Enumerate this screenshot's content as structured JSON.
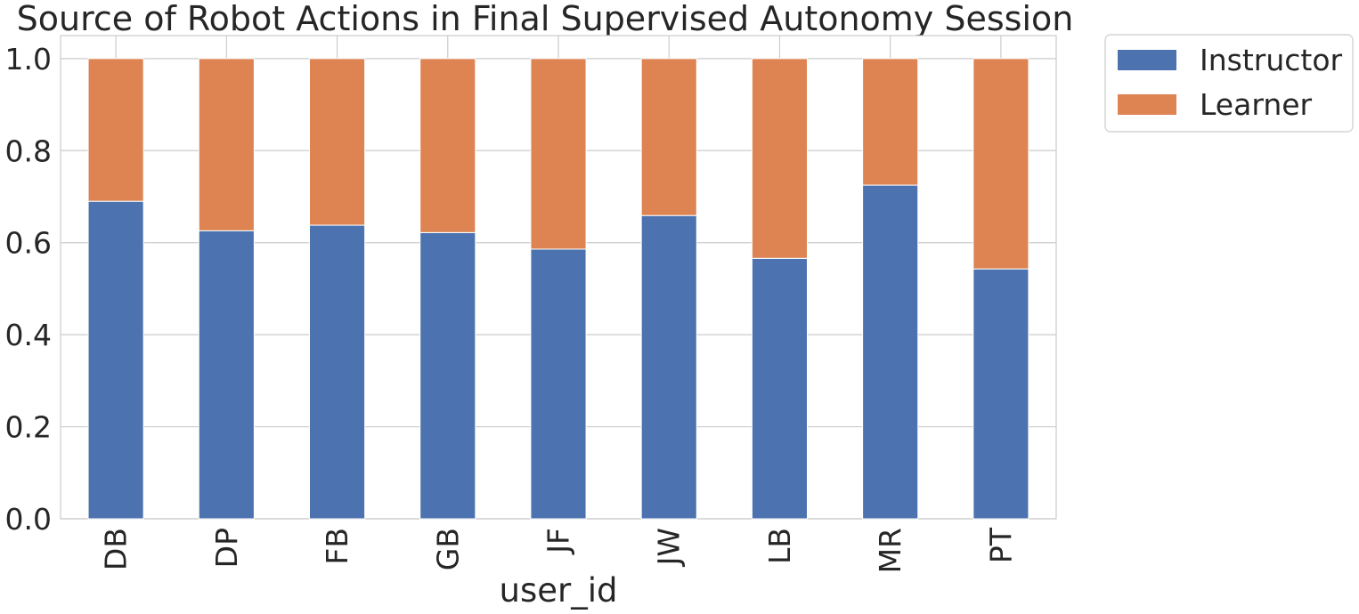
{
  "chart_data": {
    "type": "bar",
    "stacked": true,
    "title": "Source of Robot Actions in Final Supervised Autonomy Session",
    "xlabel": "user_id",
    "ylabel": "",
    "categories": [
      "DB",
      "DP",
      "FB",
      "GB",
      "JF",
      "JW",
      "LB",
      "MR",
      "PT"
    ],
    "series": [
      {
        "name": "Instructor",
        "color": "#4c72b0",
        "values": [
          0.69,
          0.626,
          0.638,
          0.622,
          0.586,
          0.659,
          0.566,
          0.725,
          0.543
        ]
      },
      {
        "name": "Learner",
        "color": "#dd8452",
        "values": [
          0.31,
          0.374,
          0.362,
          0.378,
          0.414,
          0.341,
          0.434,
          0.275,
          0.457
        ]
      }
    ],
    "ylim": [
      0,
      1.05
    ],
    "yticks": [
      "0.0",
      "0.2",
      "0.4",
      "0.6",
      "0.8",
      "1.0"
    ],
    "grid": true,
    "legend_position": "outside-top-right"
  }
}
